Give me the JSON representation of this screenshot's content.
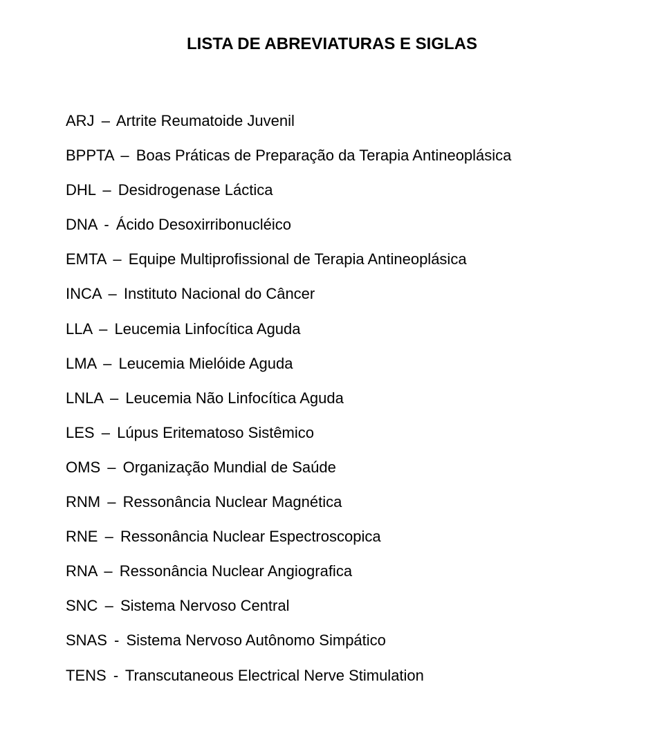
{
  "title": "LISTA DE ABREVIATURAS E SIGLAS",
  "style": {
    "background_color": "#ffffff",
    "text_color": "#000000",
    "font_family": "Arial",
    "title_fontsize": 24,
    "title_fontweight": "bold",
    "body_fontsize": 22,
    "line_height": 1.55,
    "entry_spacing": 16,
    "dash_glyph": "–"
  },
  "entries": [
    {
      "abbr": "ARJ",
      "sep": "–",
      "expansion": "Artrite Reumatoide Juvenil"
    },
    {
      "abbr": "BPPTA",
      "sep": "–",
      "expansion": "Boas Práticas de Preparação da Terapia Antineoplásica"
    },
    {
      "abbr": "DHL",
      "sep": "–",
      "expansion": "Desidrogenase Láctica"
    },
    {
      "abbr": "DNA",
      "sep": "-",
      "expansion": "Ácido Desoxirribonucléico"
    },
    {
      "abbr": "EMTA",
      "sep": "–",
      "expansion": "Equipe Multiprofissional de Terapia Antineoplásica"
    },
    {
      "abbr": "INCA",
      "sep": "–",
      "expansion": "Instituto Nacional do Câncer"
    },
    {
      "abbr": "LLA",
      "sep": "–",
      "expansion": "Leucemia Linfocítica Aguda"
    },
    {
      "abbr": "LMA",
      "sep": "–",
      "expansion": "Leucemia Mielóide Aguda"
    },
    {
      "abbr": "LNLA",
      "sep": "–",
      "expansion": "Leucemia Não Linfocítica Aguda"
    },
    {
      "abbr": "LES",
      "sep": "–",
      "expansion": "Lúpus Eritematoso Sistêmico"
    },
    {
      "abbr": "OMS",
      "sep": "–",
      "expansion": "Organização Mundial de Saúde"
    },
    {
      "abbr": "RNM",
      "sep": "–",
      "expansion": "Ressonância Nuclear Magnética"
    },
    {
      "abbr": "RNE",
      "sep": "–",
      "expansion": "Ressonância Nuclear Espectroscopica"
    },
    {
      "abbr": "RNA",
      "sep": "–",
      "expansion": "Ressonância Nuclear Angiografica"
    },
    {
      "abbr": "SNC",
      "sep": "–",
      "expansion": "Sistema Nervoso Central"
    },
    {
      "abbr": "SNAS",
      "sep": "-",
      "expansion": "Sistema Nervoso Autônomo Simpático"
    },
    {
      "abbr": "TENS",
      "sep": "-",
      "expansion": "Transcutaneous Electrical Nerve Stimulation"
    }
  ]
}
